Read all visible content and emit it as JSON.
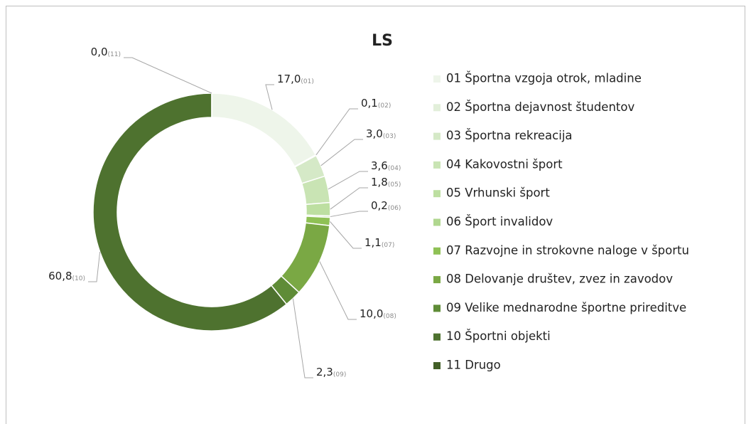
{
  "chart_data": {
    "type": "donut",
    "title": "LS",
    "categories": [
      "01 Športna vzgoja otrok, mladine",
      "02 Športna dejavnost študentov",
      "03 Športna rekreacija",
      "04 Kakovostni šport",
      "05 Vrhunski šport",
      "06 Šport invalidov",
      "07 Razvojne in strokovne naloge v športu",
      "08 Delovanje društev, zvez in zavodov",
      "09 Velike mednarodne športne prireditve",
      "10 Športni objekti",
      "11 Drugo"
    ],
    "values": [
      17.0,
      0.1,
      3.0,
      3.6,
      1.8,
      0.2,
      1.1,
      10.0,
      2.3,
      60.8,
      0.0
    ],
    "value_labels": [
      "17,0",
      "0,1",
      "3,0",
      "3,6",
      "1,8",
      "0,2",
      "1,1",
      "10,0",
      "2,3",
      "60,8",
      "0,0"
    ],
    "label_codes": [
      "(01)",
      "(02)",
      "(03)",
      "(04)",
      "(05)",
      "(06)",
      "(07)",
      "(08)",
      "(09)",
      "(10)",
      "(11)"
    ],
    "colors": [
      "#eef5ea",
      "#e2efda",
      "#d5e9c7",
      "#c9e4b4",
      "#bddfa1",
      "#b0d78f",
      "#8fc155",
      "#7aa844",
      "#5f8c37",
      "#4e722f",
      "#425f27"
    ],
    "legend": "right"
  }
}
